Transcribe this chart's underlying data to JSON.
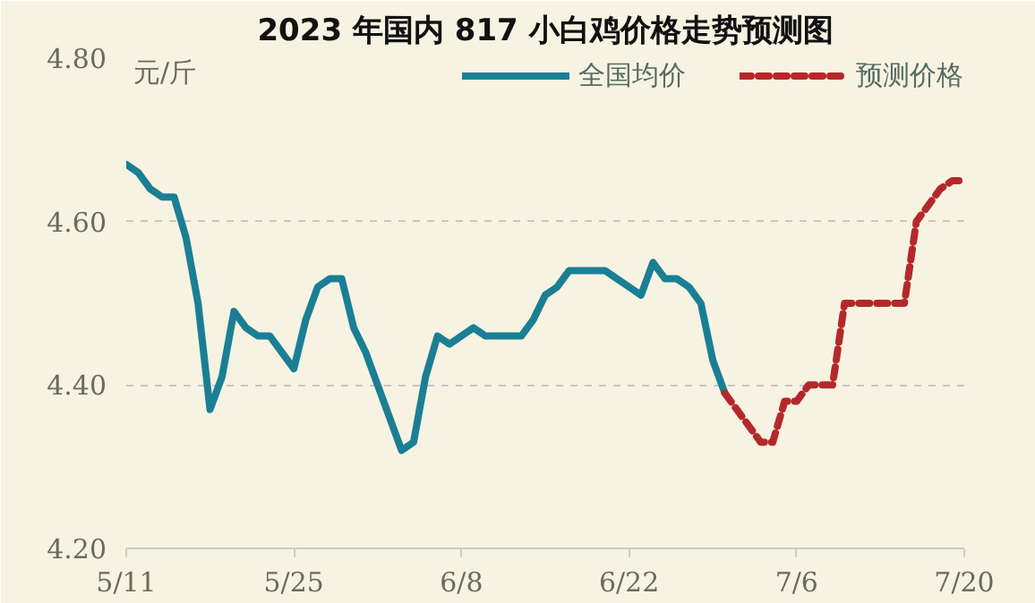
{
  "chart_data": {
    "type": "line",
    "title": "2023 年国内 817 小白鸡价格走势预测图",
    "ylabel": "元/斤",
    "xlim": [
      "2023-05-11",
      "2023-07-20"
    ],
    "xticks": [
      {
        "value": "2023-05-11",
        "label": "5/11"
      },
      {
        "value": "2023-05-25",
        "label": "5/25"
      },
      {
        "value": "2023-06-08",
        "label": "6/8"
      },
      {
        "value": "2023-06-22",
        "label": "6/22"
      },
      {
        "value": "2023-07-06",
        "label": "7/6"
      },
      {
        "value": "2023-07-20",
        "label": "7/20"
      }
    ],
    "ylim": [
      4.2,
      4.8
    ],
    "yticks": [
      {
        "value": 4.2,
        "label": "4.20"
      },
      {
        "value": 4.4,
        "label": "4.40"
      },
      {
        "value": 4.6,
        "label": "4.60"
      },
      {
        "value": 4.8,
        "label": "4.80"
      }
    ],
    "grid": "y",
    "legend": "top right",
    "marker": "none",
    "series": [
      {
        "name": "全国均价",
        "color": "#1a7f95",
        "line_style": "solid",
        "x": [
          "2023-05-11",
          "2023-05-12",
          "2023-05-13",
          "2023-05-14",
          "2023-05-15",
          "2023-05-16",
          "2023-05-17",
          "2023-05-18",
          "2023-05-19",
          "2023-05-20",
          "2023-05-21",
          "2023-05-22",
          "2023-05-23",
          "2023-05-24",
          "2023-05-25",
          "2023-05-26",
          "2023-05-27",
          "2023-05-28",
          "2023-05-29",
          "2023-05-30",
          "2023-05-31",
          "2023-06-01",
          "2023-06-02",
          "2023-06-03",
          "2023-06-04",
          "2023-06-05",
          "2023-06-06",
          "2023-06-07",
          "2023-06-08",
          "2023-06-09",
          "2023-06-10",
          "2023-06-11",
          "2023-06-12",
          "2023-06-13",
          "2023-06-14",
          "2023-06-15",
          "2023-06-16",
          "2023-06-17",
          "2023-06-18",
          "2023-06-19",
          "2023-06-20",
          "2023-06-21",
          "2023-06-22",
          "2023-06-23",
          "2023-06-24",
          "2023-06-25",
          "2023-06-26",
          "2023-06-27",
          "2023-06-28",
          "2023-06-29",
          "2023-06-30"
        ],
        "values": [
          4.67,
          4.66,
          4.64,
          4.63,
          4.63,
          4.58,
          4.5,
          4.37,
          4.41,
          4.49,
          4.47,
          4.46,
          4.46,
          4.44,
          4.42,
          4.48,
          4.52,
          4.53,
          4.53,
          4.47,
          4.44,
          4.4,
          4.36,
          4.32,
          4.33,
          4.41,
          4.46,
          4.45,
          4.46,
          4.47,
          4.46,
          4.46,
          4.46,
          4.46,
          4.48,
          4.51,
          4.52,
          4.54,
          4.54,
          4.54,
          4.54,
          4.53,
          4.52,
          4.51,
          4.55,
          4.53,
          4.53,
          4.52,
          4.5,
          4.43,
          4.39
        ]
      },
      {
        "name": "预测价格",
        "color": "#b5282a",
        "line_style": "dashed",
        "x": [
          "2023-06-30",
          "2023-07-01",
          "2023-07-03",
          "2023-07-04",
          "2023-07-05",
          "2023-07-06",
          "2023-07-07",
          "2023-07-09",
          "2023-07-10",
          "2023-07-15",
          "2023-07-16",
          "2023-07-18",
          "2023-07-19",
          "2023-07-20"
        ],
        "values": [
          4.39,
          4.37,
          4.33,
          4.33,
          4.38,
          4.38,
          4.4,
          4.4,
          4.5,
          4.5,
          4.6,
          4.64,
          4.65,
          4.65
        ]
      }
    ]
  }
}
